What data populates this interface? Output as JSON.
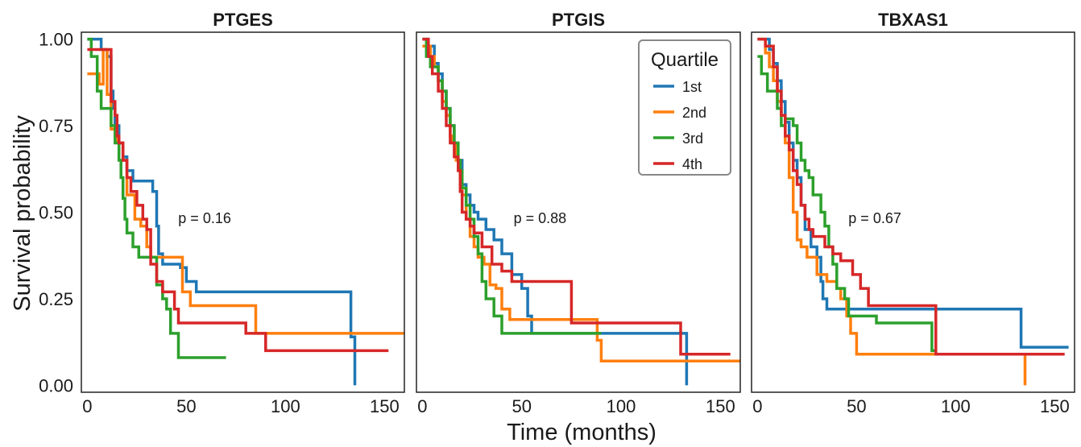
{
  "figure": {
    "ylabel": "Survival probability",
    "xlabel": "Time (months)"
  },
  "legend": {
    "title": "Quartile",
    "entries": [
      {
        "label": "1st",
        "color": "#1f77b4"
      },
      {
        "label": "2nd",
        "color": "#ff7f0e"
      },
      {
        "label": "3rd",
        "color": "#2ca02c"
      },
      {
        "label": "4th",
        "color": "#d62728"
      }
    ]
  },
  "chart_data": [
    {
      "type": "line",
      "subtype": "step",
      "title": "PTGES",
      "annotation": "p = 0.16",
      "xlim": [
        -3,
        160
      ],
      "ylim": [
        -0.02,
        1.02
      ],
      "xticks": [
        0,
        50,
        100,
        150
      ],
      "yticks": [
        "0.00",
        "0.25",
        "0.50",
        "0.75",
        "1.00"
      ],
      "series": [
        {
          "name": "1st",
          "color": "#1f77b4",
          "points": [
            [
              0,
              1.0
            ],
            [
              5,
              1.0
            ],
            [
              7,
              0.97
            ],
            [
              10,
              0.95
            ],
            [
              12,
              0.85
            ],
            [
              13,
              0.8
            ],
            [
              14,
              0.75
            ],
            [
              16,
              0.7
            ],
            [
              18,
              0.66
            ],
            [
              20,
              0.62
            ],
            [
              23,
              0.59
            ],
            [
              33,
              0.56
            ],
            [
              35,
              0.46
            ],
            [
              36,
              0.38
            ],
            [
              38,
              0.35
            ],
            [
              47,
              0.34
            ],
            [
              50,
              0.3
            ],
            [
              55,
              0.27
            ],
            [
              133,
              0.27
            ],
            [
              133,
              0.14
            ],
            [
              135,
              0.14
            ],
            [
              135,
              0.0
            ]
          ]
        },
        {
          "name": "2nd",
          "color": "#ff7f0e",
          "points": [
            [
              0,
              0.9
            ],
            [
              4,
              0.9
            ],
            [
              6,
              0.87
            ],
            [
              8,
              0.97
            ],
            [
              10,
              0.84
            ],
            [
              12,
              0.74
            ],
            [
              15,
              0.7
            ],
            [
              18,
              0.65
            ],
            [
              20,
              0.55
            ],
            [
              24,
              0.48
            ],
            [
              27,
              0.46
            ],
            [
              30,
              0.4
            ],
            [
              32,
              0.37
            ],
            [
              45,
              0.37
            ],
            [
              48,
              0.27
            ],
            [
              52,
              0.23
            ],
            [
              85,
              0.23
            ],
            [
              85,
              0.15
            ],
            [
              160,
              0.15
            ]
          ]
        },
        {
          "name": "3rd",
          "color": "#2ca02c",
          "points": [
            [
              0,
              1.0
            ],
            [
              2,
              0.95
            ],
            [
              5,
              0.85
            ],
            [
              7,
              0.8
            ],
            [
              12,
              0.75
            ],
            [
              14,
              0.7
            ],
            [
              16,
              0.65
            ],
            [
              17,
              0.6
            ],
            [
              18,
              0.54
            ],
            [
              19,
              0.48
            ],
            [
              20,
              0.44
            ],
            [
              23,
              0.4
            ],
            [
              26,
              0.37
            ],
            [
              35,
              0.29
            ],
            [
              38,
              0.25
            ],
            [
              40,
              0.22
            ],
            [
              42,
              0.15
            ],
            [
              46,
              0.08
            ],
            [
              70,
              0.08
            ]
          ]
        },
        {
          "name": "4th",
          "color": "#d62728",
          "points": [
            [
              0,
              0.97
            ],
            [
              10,
              0.97
            ],
            [
              12,
              0.82
            ],
            [
              14,
              0.78
            ],
            [
              15,
              0.72
            ],
            [
              16,
              0.7
            ],
            [
              18,
              0.65
            ],
            [
              20,
              0.6
            ],
            [
              22,
              0.56
            ],
            [
              25,
              0.52
            ],
            [
              28,
              0.48
            ],
            [
              30,
              0.45
            ],
            [
              32,
              0.35
            ],
            [
              35,
              0.3
            ],
            [
              38,
              0.27
            ],
            [
              44,
              0.22
            ],
            [
              46,
              0.18
            ],
            [
              80,
              0.18
            ],
            [
              80,
              0.15
            ],
            [
              90,
              0.15
            ],
            [
              90,
              0.1
            ],
            [
              152,
              0.1
            ]
          ]
        }
      ]
    },
    {
      "type": "line",
      "subtype": "step",
      "title": "PTGIS",
      "annotation": "p = 0.88",
      "xlim": [
        -3,
        160
      ],
      "ylim": [
        -0.02,
        1.02
      ],
      "xticks": [
        0,
        50,
        100,
        150
      ],
      "yticks": [],
      "series": [
        {
          "name": "1st",
          "color": "#1f77b4",
          "points": [
            [
              0,
              1.0
            ],
            [
              3,
              0.98
            ],
            [
              6,
              0.93
            ],
            [
              8,
              0.9
            ],
            [
              10,
              0.85
            ],
            [
              12,
              0.8
            ],
            [
              14,
              0.75
            ],
            [
              16,
              0.7
            ],
            [
              18,
              0.65
            ],
            [
              20,
              0.58
            ],
            [
              22,
              0.55
            ],
            [
              24,
              0.52
            ],
            [
              26,
              0.5
            ],
            [
              28,
              0.48
            ],
            [
              32,
              0.45
            ],
            [
              36,
              0.42
            ],
            [
              40,
              0.38
            ],
            [
              45,
              0.32
            ],
            [
              50,
              0.28
            ],
            [
              53,
              0.2
            ],
            [
              55,
              0.15
            ],
            [
              133,
              0.15
            ],
            [
              133,
              0.0
            ]
          ]
        },
        {
          "name": "2nd",
          "color": "#ff7f0e",
          "points": [
            [
              0,
              0.98
            ],
            [
              4,
              0.95
            ],
            [
              6,
              0.92
            ],
            [
              8,
              0.88
            ],
            [
              10,
              0.82
            ],
            [
              12,
              0.78
            ],
            [
              14,
              0.72
            ],
            [
              15,
              0.7
            ],
            [
              17,
              0.65
            ],
            [
              19,
              0.6
            ],
            [
              20,
              0.55
            ],
            [
              22,
              0.48
            ],
            [
              24,
              0.43
            ],
            [
              26,
              0.4
            ],
            [
              28,
              0.37
            ],
            [
              31,
              0.35
            ],
            [
              34,
              0.29
            ],
            [
              37,
              0.28
            ],
            [
              40,
              0.22
            ],
            [
              44,
              0.19
            ],
            [
              88,
              0.19
            ],
            [
              88,
              0.13
            ],
            [
              90,
              0.13
            ],
            [
              90,
              0.07
            ],
            [
              160,
              0.07
            ]
          ]
        },
        {
          "name": "3rd",
          "color": "#2ca02c",
          "points": [
            [
              0,
              1.0
            ],
            [
              2,
              0.95
            ],
            [
              4,
              0.92
            ],
            [
              8,
              0.88
            ],
            [
              10,
              0.85
            ],
            [
              12,
              0.8
            ],
            [
              14,
              0.75
            ],
            [
              16,
              0.7
            ],
            [
              18,
              0.65
            ],
            [
              19,
              0.62
            ],
            [
              20,
              0.57
            ],
            [
              22,
              0.52
            ],
            [
              24,
              0.48
            ],
            [
              26,
              0.43
            ],
            [
              28,
              0.38
            ],
            [
              30,
              0.3
            ],
            [
              32,
              0.25
            ],
            [
              36,
              0.2
            ],
            [
              40,
              0.15
            ],
            [
              90,
              0.15
            ]
          ]
        },
        {
          "name": "4th",
          "color": "#d62728",
          "points": [
            [
              0,
              1.0
            ],
            [
              3,
              0.95
            ],
            [
              5,
              0.9
            ],
            [
              8,
              0.85
            ],
            [
              10,
              0.8
            ],
            [
              12,
              0.75
            ],
            [
              14,
              0.7
            ],
            [
              16,
              0.66
            ],
            [
              18,
              0.62
            ],
            [
              19,
              0.56
            ],
            [
              20,
              0.5
            ],
            [
              22,
              0.48
            ],
            [
              24,
              0.46
            ],
            [
              26,
              0.44
            ],
            [
              30,
              0.4
            ],
            [
              35,
              0.35
            ],
            [
              40,
              0.33
            ],
            [
              45,
              0.3
            ],
            [
              75,
              0.3
            ],
            [
              75,
              0.18
            ],
            [
              130,
              0.18
            ],
            [
              130,
              0.09
            ],
            [
              155,
              0.09
            ]
          ]
        }
      ]
    },
    {
      "type": "line",
      "subtype": "step",
      "title": "TBXAS1",
      "annotation": "p = 0.67",
      "xlim": [
        -3,
        160
      ],
      "ylim": [
        -0.02,
        1.02
      ],
      "xticks": [
        0,
        50,
        100,
        150
      ],
      "yticks": [],
      "series": [
        {
          "name": "1st",
          "color": "#1f77b4",
          "points": [
            [
              0,
              1.0
            ],
            [
              6,
              0.97
            ],
            [
              8,
              0.93
            ],
            [
              10,
              0.88
            ],
            [
              12,
              0.82
            ],
            [
              14,
              0.76
            ],
            [
              16,
              0.7
            ],
            [
              18,
              0.65
            ],
            [
              20,
              0.6
            ],
            [
              22,
              0.52
            ],
            [
              24,
              0.45
            ],
            [
              27,
              0.4
            ],
            [
              30,
              0.37
            ],
            [
              32,
              0.3
            ],
            [
              33,
              0.25
            ],
            [
              35,
              0.22
            ],
            [
              133,
              0.22
            ],
            [
              133,
              0.11
            ],
            [
              157,
              0.11
            ]
          ]
        },
        {
          "name": "2nd",
          "color": "#ff7f0e",
          "points": [
            [
              0,
              1.0
            ],
            [
              4,
              0.96
            ],
            [
              6,
              0.92
            ],
            [
              8,
              0.88
            ],
            [
              10,
              0.82
            ],
            [
              12,
              0.78
            ],
            [
              14,
              0.7
            ],
            [
              16,
              0.6
            ],
            [
              18,
              0.5
            ],
            [
              20,
              0.42
            ],
            [
              22,
              0.4
            ],
            [
              25,
              0.37
            ],
            [
              30,
              0.32
            ],
            [
              35,
              0.3
            ],
            [
              40,
              0.28
            ],
            [
              42,
              0.25
            ],
            [
              45,
              0.2
            ],
            [
              47,
              0.15
            ],
            [
              50,
              0.09
            ],
            [
              135,
              0.09
            ],
            [
              135,
              0.0
            ]
          ]
        },
        {
          "name": "3rd",
          "color": "#2ca02c",
          "points": [
            [
              0,
              0.95
            ],
            [
              2,
              0.9
            ],
            [
              5,
              0.85
            ],
            [
              10,
              0.8
            ],
            [
              12,
              0.75
            ],
            [
              14,
              0.77
            ],
            [
              18,
              0.75
            ],
            [
              20,
              0.7
            ],
            [
              22,
              0.65
            ],
            [
              24,
              0.62
            ],
            [
              26,
              0.6
            ],
            [
              28,
              0.55
            ],
            [
              32,
              0.5
            ],
            [
              34,
              0.46
            ],
            [
              36,
              0.4
            ],
            [
              38,
              0.35
            ],
            [
              40,
              0.28
            ],
            [
              44,
              0.25
            ],
            [
              46,
              0.2
            ],
            [
              60,
              0.2
            ],
            [
              60,
              0.18
            ],
            [
              88,
              0.18
            ],
            [
              88,
              0.1
            ],
            [
              90,
              0.1
            ]
          ]
        },
        {
          "name": "4th",
          "color": "#d62728",
          "points": [
            [
              0,
              1.0
            ],
            [
              4,
              0.98
            ],
            [
              8,
              0.92
            ],
            [
              10,
              0.85
            ],
            [
              12,
              0.78
            ],
            [
              14,
              0.72
            ],
            [
              16,
              0.68
            ],
            [
              18,
              0.62
            ],
            [
              20,
              0.58
            ],
            [
              22,
              0.52
            ],
            [
              24,
              0.48
            ],
            [
              26,
              0.45
            ],
            [
              28,
              0.43
            ],
            [
              34,
              0.4
            ],
            [
              38,
              0.38
            ],
            [
              42,
              0.36
            ],
            [
              48,
              0.32
            ],
            [
              52,
              0.28
            ],
            [
              56,
              0.23
            ],
            [
              90,
              0.23
            ],
            [
              90,
              0.09
            ],
            [
              155,
              0.09
            ]
          ]
        }
      ]
    }
  ]
}
